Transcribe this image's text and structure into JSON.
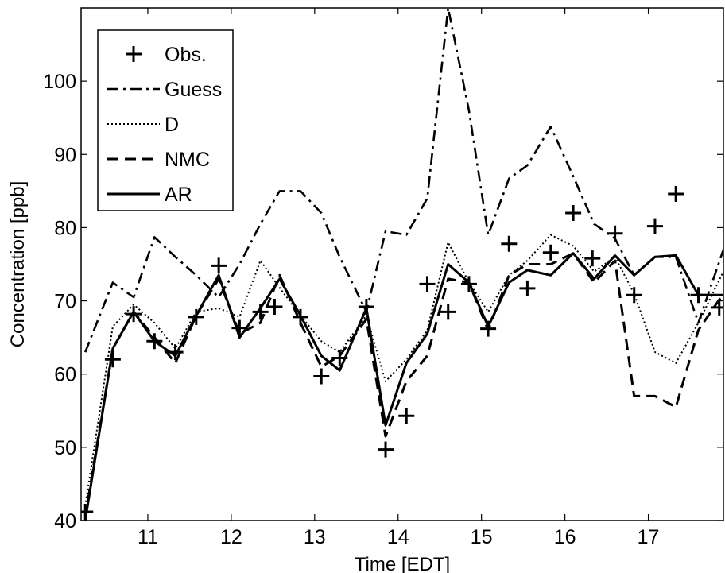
{
  "chart_data": {
    "type": "line",
    "xlabel": "Time [EDT]",
    "ylabel": "Concentration [ppb]",
    "xlim": [
      10.2,
      17.9
    ],
    "ylim": [
      40,
      110
    ],
    "xticks": [
      11,
      12,
      13,
      14,
      15,
      16,
      17
    ],
    "yticks": [
      40,
      50,
      60,
      70,
      80,
      90,
      100
    ],
    "xtick_labels": [
      "11",
      "12",
      "13",
      "14",
      "15",
      "16",
      "17"
    ],
    "ytick_labels": [
      "40",
      "50",
      "60",
      "70",
      "80",
      "90",
      "100"
    ],
    "grid": false,
    "legend_position": "top-left",
    "series": [
      {
        "name": "Obs.",
        "style": "plus",
        "x": [
          10.25,
          10.58,
          10.83,
          11.08,
          11.33,
          11.58,
          11.85,
          12.1,
          12.35,
          12.52,
          12.83,
          13.08,
          13.3,
          13.62,
          13.85,
          14.1,
          14.35,
          14.6,
          14.85,
          15.08,
          15.33,
          15.55,
          15.83,
          16.1,
          16.33,
          16.6,
          16.83,
          17.08,
          17.33,
          17.6,
          17.85
        ],
        "y": [
          41.2,
          62,
          68.2,
          64.5,
          63,
          67.8,
          74.8,
          66.3,
          68.5,
          69.2,
          67.8,
          59.7,
          62.2,
          69.2,
          49.7,
          54.3,
          72.3,
          68.5,
          72.3,
          66.2,
          77.8,
          71.7,
          76.6,
          82,
          75.8,
          79.2,
          70.8,
          80.2,
          84.6,
          70.8,
          69.1
        ]
      },
      {
        "name": "Guess",
        "style": "dashdot",
        "x": [
          10.25,
          10.58,
          10.83,
          11.08,
          11.33,
          11.58,
          11.85,
          12.1,
          12.35,
          12.58,
          12.83,
          13.08,
          13.3,
          13.62,
          13.85,
          14.1,
          14.35,
          14.6,
          14.85,
          15.08,
          15.33,
          15.55,
          15.83,
          16.1,
          16.35,
          16.6,
          16.83,
          17.08,
          17.33,
          17.6,
          17.9
        ],
        "y": [
          63,
          72.5,
          70.5,
          78.7,
          76,
          73.5,
          70.5,
          75,
          80.5,
          85,
          85,
          82,
          76,
          68.5,
          79.5,
          79,
          84,
          110,
          96,
          79,
          86.7,
          88.5,
          93.8,
          87,
          80.5,
          78.5,
          73.5,
          76,
          76,
          67,
          77
        ]
      },
      {
        "name": "D",
        "style": "dotted",
        "x": [
          10.25,
          10.58,
          10.83,
          11.08,
          11.33,
          11.58,
          11.85,
          12.1,
          12.35,
          12.58,
          12.83,
          13.08,
          13.3,
          13.62,
          13.85,
          14.1,
          14.35,
          14.6,
          14.85,
          15.08,
          15.33,
          15.55,
          15.83,
          16.1,
          16.35,
          16.6,
          16.83,
          17.08,
          17.33,
          17.6,
          17.9
        ],
        "y": [
          42,
          66.5,
          69.5,
          67,
          63.5,
          68.5,
          69,
          67.8,
          75.5,
          71.8,
          68,
          64.5,
          63,
          68,
          59,
          62,
          66,
          78,
          72.5,
          68.5,
          73.5,
          75.5,
          79,
          77.5,
          74,
          76,
          71,
          63,
          61.5,
          67,
          74
        ]
      },
      {
        "name": "NMC",
        "style": "dashed",
        "x": [
          10.25,
          10.58,
          10.83,
          11.08,
          11.33,
          11.58,
          11.85,
          12.1,
          12.35,
          12.58,
          12.83,
          13.08,
          13.3,
          13.62,
          13.85,
          14.1,
          14.35,
          14.6,
          14.85,
          15.08,
          15.33,
          15.55,
          15.83,
          16.1,
          16.35,
          16.6,
          16.83,
          17.08,
          17.33,
          17.6,
          17.9
        ],
        "y": [
          40.5,
          63.5,
          68.5,
          65,
          61.5,
          68,
          73,
          65.5,
          67,
          73.5,
          67,
          61,
          62.5,
          67.5,
          51.5,
          59,
          62.5,
          73,
          72.5,
          66,
          73.5,
          75,
          75,
          76.5,
          72.5,
          75.5,
          57,
          57,
          55.5,
          66,
          71
        ]
      },
      {
        "name": "AR",
        "style": "solid",
        "x": [
          10.25,
          10.58,
          10.83,
          11.08,
          11.33,
          11.58,
          11.85,
          12.1,
          12.35,
          12.58,
          12.83,
          13.08,
          13.3,
          13.62,
          13.85,
          14.1,
          14.35,
          14.6,
          14.85,
          15.08,
          15.33,
          15.55,
          15.83,
          16.1,
          16.35,
          16.6,
          16.83,
          17.08,
          17.33,
          17.6,
          17.9
        ],
        "y": [
          40,
          63.5,
          68.5,
          64.5,
          62.5,
          68,
          73.5,
          65,
          69,
          73,
          68,
          62.5,
          60.5,
          69,
          53,
          61.5,
          65.5,
          75,
          72.5,
          66.5,
          72.5,
          74.2,
          73.5,
          76.5,
          73,
          76.2,
          73.5,
          76,
          76.2,
          70.8,
          70.8
        ]
      }
    ]
  }
}
